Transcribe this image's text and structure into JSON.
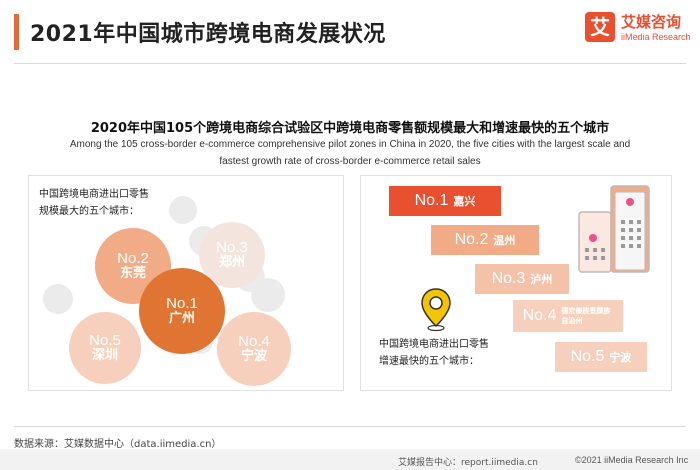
{
  "header": {
    "title": "2021年中国城市跨境电商发展状况",
    "logo_glyph": "艾",
    "logo_cn": "艾媒咨询",
    "logo_en": "iiMedia Research"
  },
  "subtitle": {
    "cn": "2020年中国105个跨境电商综合试验区中跨境电商零售额规模最大和增速最快的五个城市",
    "en": "Among the 105 cross-border e-commerce comprehensive pilot zones in China in 2020, the five cities with the largest scale and fastest growth rate of cross-border e-commerce retail sales"
  },
  "largest": {
    "caption_line1": "中国跨境电商进出口零售",
    "caption_line2": "规模最大的五个城市：",
    "items": [
      {
        "rank": "No.1",
        "city": "广州"
      },
      {
        "rank": "No.2",
        "city": "东莞"
      },
      {
        "rank": "No.3",
        "city": "郑州"
      },
      {
        "rank": "No.4",
        "city": "宁波"
      },
      {
        "rank": "No.5",
        "city": "深圳"
      }
    ]
  },
  "fastest": {
    "caption_line1": "中国跨境电商进出口零售",
    "caption_line2": "增速最快的五个城市：",
    "items": [
      {
        "rank": "No.1",
        "city": "嘉兴"
      },
      {
        "rank": "No.2",
        "city": "温州"
      },
      {
        "rank": "No.3",
        "city": "泸州"
      },
      {
        "rank": "No.4",
        "city": "德宏傣族景颇族自治州"
      },
      {
        "rank": "No.5",
        "city": "宁波"
      }
    ]
  },
  "footer": {
    "source": "数据来源：艾媒数据中心（data.iimedia.cn）",
    "report": "艾媒报告中心：report.iimedia.cn",
    "copyright": "©2021  iiMedia Research Inc"
  },
  "colors": {
    "brand": "#e8502f",
    "accent_dark": "#e07533",
    "accent_mid": "#f1ab86",
    "accent_light": "#f6d0bc",
    "bubble_grey": "#ebebeb",
    "pin": "#f5c400",
    "pink_dot": "#f0508a"
  },
  "icons": [
    "location-pin-icon",
    "office-buildings-icon",
    "chinese-character-logo-icon",
    "copyright-icon"
  ]
}
